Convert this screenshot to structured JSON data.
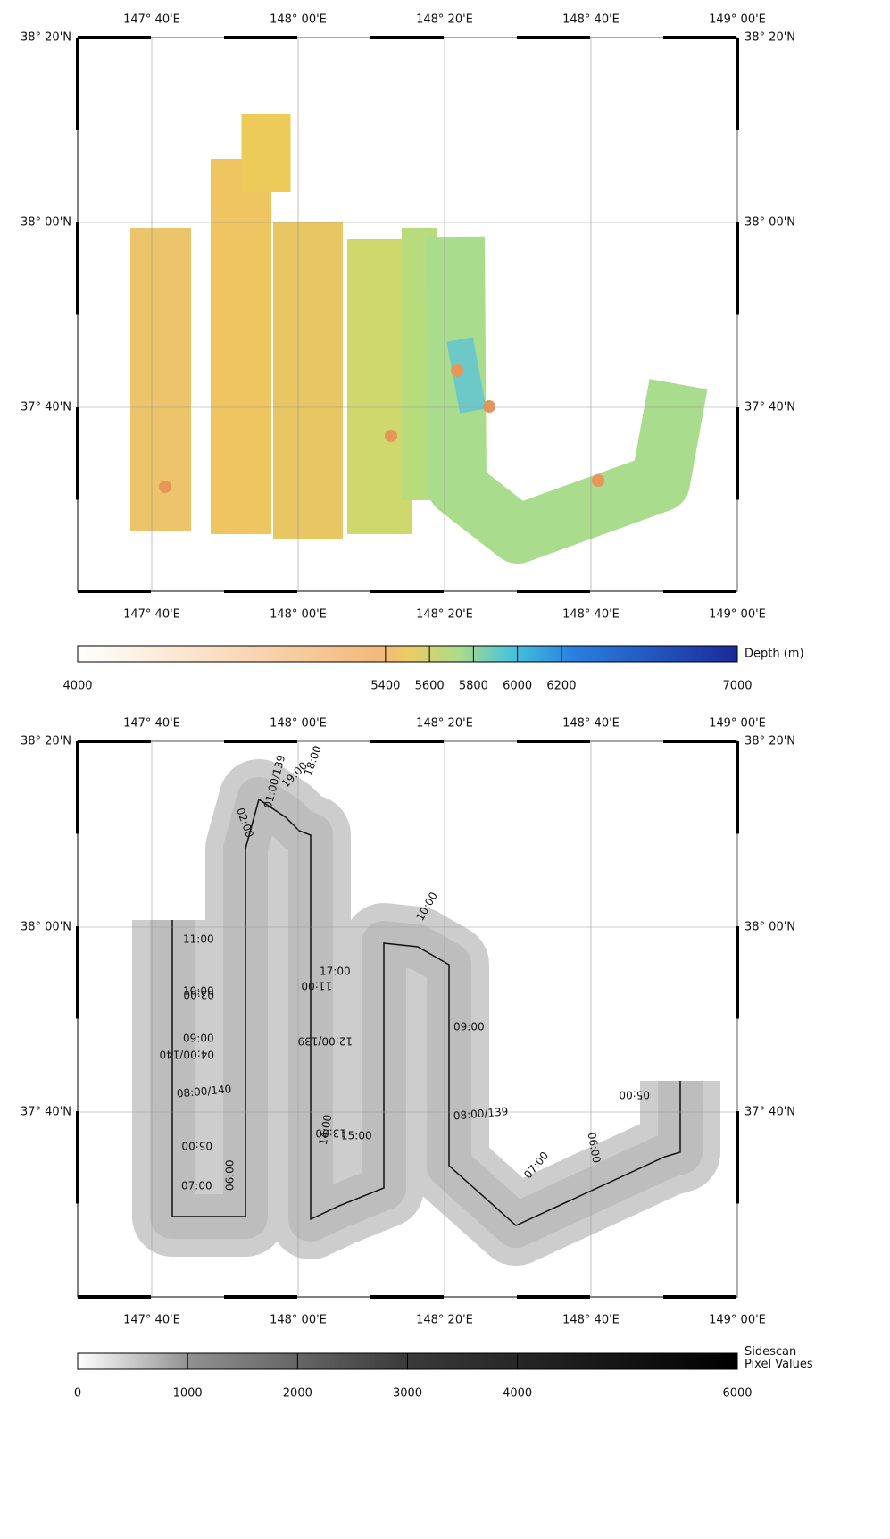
{
  "maps": [
    {
      "lon_labels": [
        "147° 40'E",
        "148° 00'E",
        "148° 20'E",
        "148° 40'E",
        "149° 00'E"
      ],
      "lat_labels": [
        "38° 20'N",
        "38° 00'N",
        "37° 40'N"
      ]
    },
    {
      "lon_labels": [
        "147° 40'E",
        "148° 00'E",
        "148° 20'E",
        "148° 40'E",
        "149° 00'E"
      ],
      "lat_labels": [
        "38° 20'N",
        "38° 00'N",
        "37° 40'N"
      ],
      "track_labels": [
        "11:00",
        "10:00",
        "09:00",
        "08:00/140",
        "07:00",
        "06:00",
        "05:00",
        "04:00/140",
        "03:00",
        "02:00",
        "01:00/139",
        "19:00",
        "18:00",
        "17:00",
        "11:00",
        "12:00/139",
        "13:00",
        "14:00",
        "15:00",
        "10:00",
        "09:00",
        "08:00/139",
        "07:00",
        "06:00",
        "05:00"
      ]
    }
  ],
  "colorbars": [
    {
      "title": "Depth (m)",
      "range": [
        4000,
        7000
      ],
      "ticks": [
        4000,
        5400,
        5600,
        5800,
        6000,
        6200,
        7000
      ]
    },
    {
      "title": "Sidescan Pixel Values",
      "range": [
        0,
        6000
      ],
      "ticks": [
        0,
        1000,
        2000,
        3000,
        4000,
        6000
      ]
    }
  ]
}
